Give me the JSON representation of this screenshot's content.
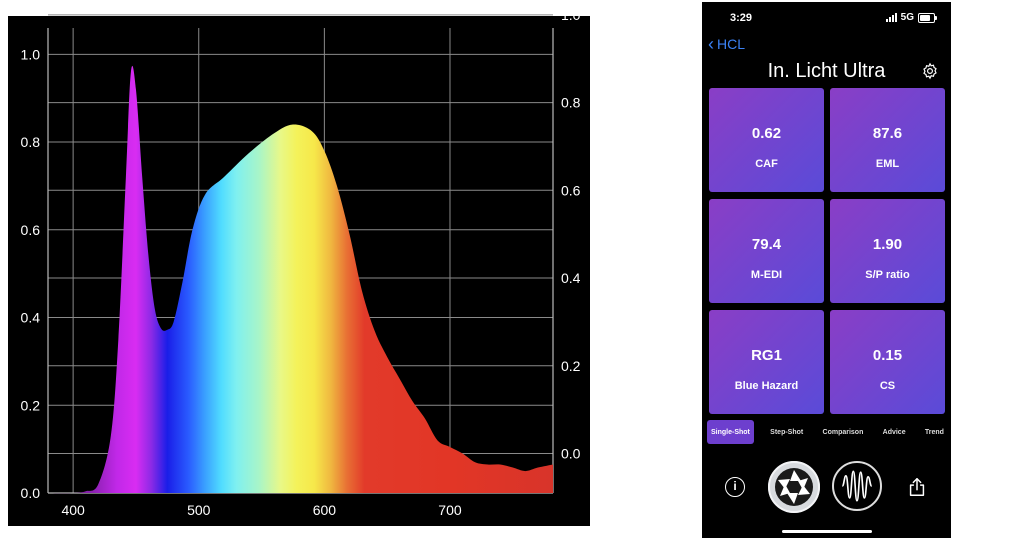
{
  "chart_data": {
    "type": "area",
    "x_ticks": [
      "400",
      "500",
      "600",
      "700"
    ],
    "y_left_ticks": [
      "0.0",
      "0.2",
      "0.4",
      "0.6",
      "0.8",
      "1.0"
    ],
    "y_right_ticks": [
      "0.0",
      "0.2",
      "0.4",
      "0.6",
      "0.8",
      "1.0"
    ],
    "xlim": [
      380,
      782
    ],
    "ylim": [
      0,
      1.06
    ],
    "grid": true,
    "x": [
      380,
      400,
      410,
      420,
      430,
      436,
      442,
      446,
      450,
      455,
      460,
      465,
      470,
      475,
      480,
      487,
      495,
      505,
      520,
      540,
      560,
      575,
      590,
      600,
      610,
      620,
      630,
      640,
      650,
      660,
      670,
      680,
      690,
      700,
      710,
      720,
      730,
      740,
      750,
      760,
      770,
      782
    ],
    "values": [
      0,
      0,
      0.004,
      0.02,
      0.13,
      0.35,
      0.72,
      0.96,
      0.92,
      0.72,
      0.54,
      0.42,
      0.375,
      0.372,
      0.39,
      0.48,
      0.6,
      0.68,
      0.72,
      0.775,
      0.82,
      0.84,
      0.825,
      0.78,
      0.7,
      0.59,
      0.46,
      0.37,
      0.31,
      0.26,
      0.21,
      0.17,
      0.12,
      0.105,
      0.09,
      0.07,
      0.065,
      0.065,
      0.058,
      0.05,
      0.058,
      0.065
    ]
  },
  "phone": {
    "status_time": "3:29",
    "status_network": "5G",
    "back_label": "HCL",
    "title": "In. Licht Ultra",
    "tiles": [
      {
        "value": "0.62",
        "label": "CAF"
      },
      {
        "value": "87.6",
        "label": "EML"
      },
      {
        "value": "79.4",
        "label": "M-EDI"
      },
      {
        "value": "1.90",
        "label": "S/P ratio"
      },
      {
        "value": "RG1",
        "label": "Blue Hazard"
      },
      {
        "value": "0.15",
        "label": "CS"
      }
    ],
    "modes": [
      "Single-Shot",
      "Step-Shot",
      "Comparison",
      "Advice",
      "Trend"
    ],
    "active_mode": "Single-Shot",
    "icons": {
      "back": "chevron-left-icon",
      "settings": "gear-icon",
      "info": "info-icon",
      "capture": "aperture-icon",
      "spectrum": "waveform-icon",
      "share": "share-icon"
    },
    "colors": {
      "accent_link": "#3b82f6",
      "tile_start": "#8a3ec6",
      "tile_end": "#5a4bd8",
      "active_mode": "#6d3fce"
    }
  }
}
